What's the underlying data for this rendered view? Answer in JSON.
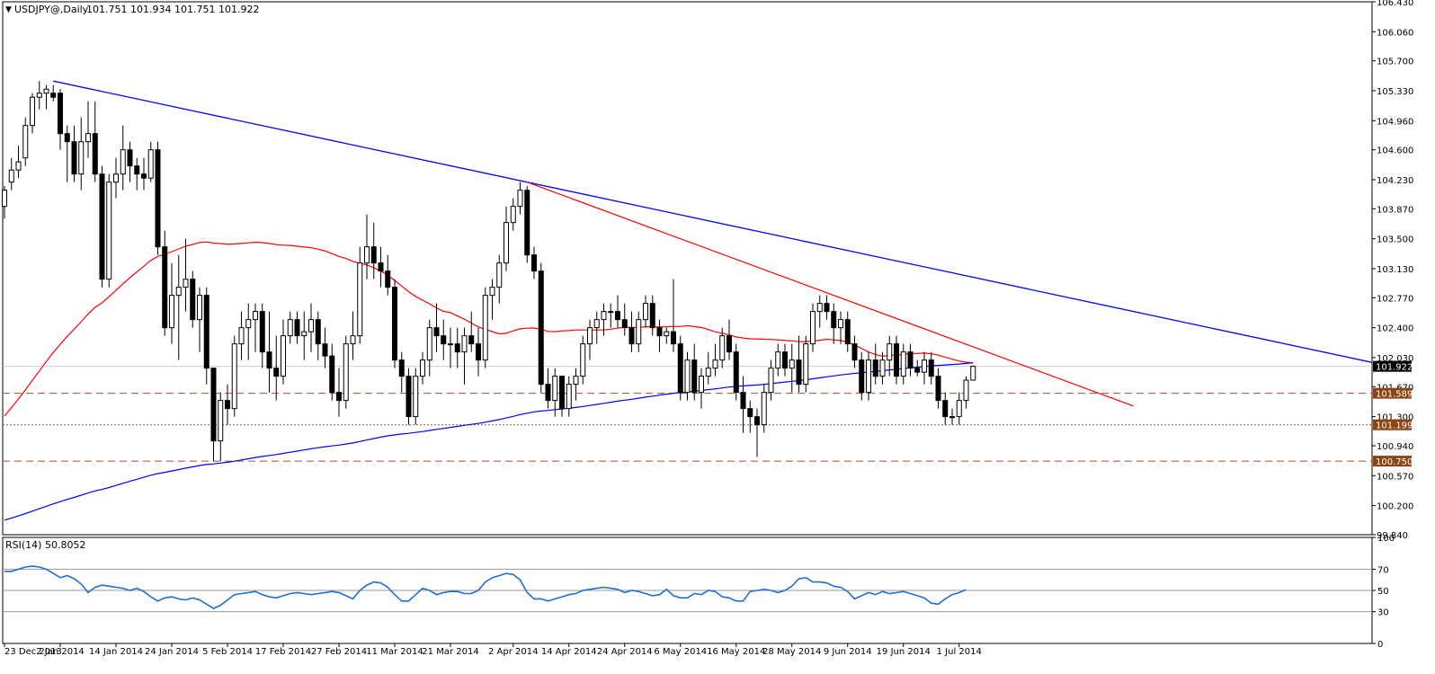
{
  "header": {
    "symbol_label": "USDJPY@,Daily",
    "ohlc_text": "101.751 101.934 101.751 101.922"
  },
  "rsi_header": "RSI(14) 50.8052",
  "colors": {
    "up_body": "#ffffff",
    "down_body": "#000000",
    "candle_outline": "#000000",
    "sma_fast": "#ff0000",
    "sma_slow": "#0000ff",
    "trendline_upper": "#0000ff",
    "trendline_lower": "#ff0000",
    "level_line": "#a0522d",
    "level_tag_bg": "#8b4513",
    "rsi_line": "#1e6fd0"
  },
  "chart_data": [
    {
      "type": "candlestick",
      "title": "USDJPY@,Daily",
      "ylim": [
        99.84,
        106.43
      ],
      "y_ticks": [
        106.43,
        106.06,
        105.7,
        105.33,
        104.96,
        104.6,
        104.23,
        103.87,
        103.5,
        103.13,
        102.77,
        102.4,
        102.03,
        101.67,
        101.3,
        100.94,
        100.57,
        100.2,
        99.84
      ],
      "x_tick_labels": [
        "23 Dec 2013",
        "2 Jan 2014",
        "14 Jan 2014",
        "24 Jan 2014",
        "5 Feb 2014",
        "17 Feb 2014",
        "27 Feb 2014",
        "11 Mar 2014",
        "21 Mar 2014",
        "2 Apr 2014",
        "14 Apr 2014",
        "24 Apr 2014",
        "6 May 2014",
        "16 May 2014",
        "28 May 2014",
        "9 Jun 2014",
        "19 Jun 2014",
        "1 Jul 2014"
      ],
      "last_price": 101.922,
      "levels": [
        {
          "value": 101.589,
          "label": "101.589",
          "style": "dashed"
        },
        {
          "value": 101.199,
          "label": "101.199",
          "style": "dotted"
        },
        {
          "value": 100.75,
          "label": "100.750",
          "style": "dashed"
        }
      ],
      "candles": [
        [
          103.9,
          104.15,
          103.75,
          104.1
        ],
        [
          104.2,
          104.5,
          104.1,
          104.35
        ],
        [
          104.35,
          104.65,
          104.25,
          104.45
        ],
        [
          104.5,
          105.0,
          104.4,
          104.9
        ],
        [
          104.9,
          105.3,
          104.8,
          105.25
        ],
        [
          105.25,
          105.45,
          105.1,
          105.3
        ],
        [
          105.3,
          105.4,
          105.1,
          105.35
        ],
        [
          105.3,
          105.4,
          105.2,
          105.25
        ],
        [
          105.3,
          105.35,
          104.6,
          104.8
        ],
        [
          104.8,
          104.9,
          104.2,
          104.7
        ],
        [
          104.7,
          104.9,
          104.2,
          104.3
        ],
        [
          104.3,
          105.0,
          104.1,
          104.7
        ],
        [
          104.7,
          105.2,
          104.5,
          104.8
        ],
        [
          104.8,
          105.2,
          104.2,
          104.3
        ],
        [
          104.3,
          104.4,
          102.9,
          103.0
        ],
        [
          103.0,
          104.3,
          102.9,
          104.2
        ],
        [
          104.2,
          104.5,
          104.0,
          104.3
        ],
        [
          104.3,
          104.9,
          104.1,
          104.6
        ],
        [
          104.6,
          104.7,
          104.2,
          104.4
        ],
        [
          104.4,
          104.5,
          104.1,
          104.3
        ],
        [
          104.3,
          104.5,
          104.1,
          104.25
        ],
        [
          104.25,
          104.7,
          104.2,
          104.6
        ],
        [
          104.6,
          104.7,
          103.3,
          103.4
        ],
        [
          103.4,
          103.6,
          102.3,
          102.4
        ],
        [
          102.4,
          103.2,
          102.2,
          102.8
        ],
        [
          102.8,
          103.3,
          102.0,
          102.9
        ],
        [
          102.9,
          103.5,
          102.6,
          103.0
        ],
        [
          103.0,
          103.1,
          102.4,
          102.5
        ],
        [
          102.5,
          102.9,
          102.1,
          102.8
        ],
        [
          102.8,
          102.9,
          101.7,
          101.9
        ],
        [
          101.9,
          101.9,
          100.75,
          101.0
        ],
        [
          101.0,
          101.6,
          100.75,
          101.5
        ],
        [
          101.5,
          101.7,
          101.2,
          101.4
        ],
        [
          101.4,
          102.3,
          101.3,
          102.2
        ],
        [
          102.2,
          102.6,
          102.0,
          102.4
        ],
        [
          102.4,
          102.7,
          102.0,
          102.5
        ],
        [
          102.5,
          102.7,
          102.1,
          102.6
        ],
        [
          102.6,
          102.7,
          101.9,
          102.1
        ],
        [
          102.1,
          102.6,
          101.6,
          101.9
        ],
        [
          101.9,
          102.3,
          101.5,
          101.8
        ],
        [
          101.8,
          102.5,
          101.7,
          102.3
        ],
        [
          102.3,
          102.6,
          102.2,
          102.5
        ],
        [
          102.5,
          102.6,
          102.2,
          102.3
        ],
        [
          102.3,
          102.6,
          102.0,
          102.35
        ],
        [
          102.35,
          102.7,
          102.1,
          102.5
        ],
        [
          102.5,
          102.6,
          102.0,
          102.2
        ],
        [
          102.2,
          102.4,
          101.9,
          102.05
        ],
        [
          102.05,
          102.2,
          101.5,
          101.6
        ],
        [
          101.6,
          101.9,
          101.3,
          101.5
        ],
        [
          101.5,
          102.3,
          101.4,
          102.2
        ],
        [
          102.2,
          102.6,
          102.0,
          102.3
        ],
        [
          102.3,
          103.4,
          102.2,
          103.2
        ],
        [
          103.2,
          103.8,
          103.0,
          103.4
        ],
        [
          103.4,
          103.7,
          103.0,
          103.2
        ],
        [
          103.2,
          103.4,
          102.9,
          103.1
        ],
        [
          103.1,
          103.3,
          102.8,
          102.9
        ],
        [
          102.9,
          103.0,
          101.9,
          102.0
        ],
        [
          102.0,
          102.1,
          101.6,
          101.8
        ],
        [
          101.8,
          101.9,
          101.2,
          101.3
        ],
        [
          101.3,
          101.9,
          101.2,
          101.8
        ],
        [
          101.8,
          102.1,
          101.7,
          102.0
        ],
        [
          102.0,
          102.5,
          101.8,
          102.4
        ],
        [
          102.4,
          102.7,
          102.1,
          102.3
        ],
        [
          102.3,
          102.5,
          102.0,
          102.2
        ],
        [
          102.2,
          102.4,
          101.9,
          102.2
        ],
        [
          102.2,
          102.4,
          101.9,
          102.1
        ],
        [
          102.1,
          102.4,
          101.7,
          102.3
        ],
        [
          102.3,
          102.6,
          102.1,
          102.2
        ],
        [
          102.2,
          102.4,
          101.8,
          102.0
        ],
        [
          102.0,
          102.9,
          101.9,
          102.8
        ],
        [
          102.8,
          103.0,
          102.5,
          102.9
        ],
        [
          102.9,
          103.3,
          102.7,
          103.2
        ],
        [
          103.2,
          103.9,
          103.1,
          103.7
        ],
        [
          103.7,
          104.0,
          103.6,
          103.9
        ],
        [
          103.9,
          104.2,
          103.8,
          104.1
        ],
        [
          104.1,
          104.15,
          103.2,
          103.3
        ],
        [
          103.3,
          103.4,
          103.0,
          103.1
        ],
        [
          103.1,
          103.2,
          101.6,
          101.7
        ],
        [
          101.7,
          101.9,
          101.4,
          101.5
        ],
        [
          101.5,
          101.9,
          101.3,
          101.8
        ],
        [
          101.8,
          101.8,
          101.3,
          101.4
        ],
        [
          101.4,
          101.8,
          101.3,
          101.7
        ],
        [
          101.7,
          101.9,
          101.5,
          101.8
        ],
        [
          101.8,
          102.3,
          101.7,
          102.2
        ],
        [
          102.2,
          102.5,
          102.0,
          102.4
        ],
        [
          102.4,
          102.6,
          102.2,
          102.5
        ],
        [
          102.5,
          102.7,
          102.3,
          102.6
        ],
        [
          102.6,
          102.7,
          102.4,
          102.6
        ],
        [
          102.6,
          102.8,
          102.4,
          102.5
        ],
        [
          102.5,
          102.7,
          102.3,
          102.4
        ],
        [
          102.4,
          102.6,
          102.1,
          102.2
        ],
        [
          102.2,
          102.6,
          102.1,
          102.5
        ],
        [
          102.5,
          102.8,
          102.4,
          102.7
        ],
        [
          102.7,
          102.8,
          102.3,
          102.4
        ],
        [
          102.4,
          102.5,
          102.1,
          102.3
        ],
        [
          102.3,
          102.4,
          102.2,
          102.35
        ],
        [
          102.35,
          103.0,
          102.1,
          102.2
        ],
        [
          102.2,
          102.3,
          101.5,
          101.6
        ],
        [
          101.6,
          102.1,
          101.5,
          102.0
        ],
        [
          102.0,
          102.2,
          101.5,
          101.6
        ],
        [
          101.6,
          101.9,
          101.4,
          101.8
        ],
        [
          101.8,
          102.1,
          101.7,
          101.9
        ],
        [
          101.9,
          102.2,
          101.8,
          102.0
        ],
        [
          102.0,
          102.4,
          101.9,
          102.3
        ],
        [
          102.3,
          102.5,
          102.0,
          102.1
        ],
        [
          102.1,
          102.2,
          101.5,
          101.6
        ],
        [
          101.6,
          101.8,
          101.1,
          101.4
        ],
        [
          101.4,
          101.5,
          101.1,
          101.3
        ],
        [
          101.3,
          101.4,
          100.8,
          101.2
        ],
        [
          101.2,
          101.7,
          101.1,
          101.6
        ],
        [
          101.6,
          102.0,
          101.5,
          101.9
        ],
        [
          101.9,
          102.2,
          101.8,
          102.1
        ],
        [
          102.1,
          102.2,
          101.8,
          101.9
        ],
        [
          101.9,
          102.2,
          101.6,
          102.0
        ],
        [
          102.0,
          102.3,
          101.6,
          101.7
        ],
        [
          101.7,
          102.3,
          101.6,
          102.2
        ],
        [
          102.2,
          102.7,
          102.1,
          102.6
        ],
        [
          102.6,
          102.8,
          102.4,
          102.7
        ],
        [
          102.7,
          102.8,
          102.5,
          102.6
        ],
        [
          102.6,
          102.7,
          102.2,
          102.4
        ],
        [
          102.4,
          102.6,
          102.2,
          102.5
        ],
        [
          102.5,
          102.6,
          102.1,
          102.2
        ],
        [
          102.2,
          102.3,
          101.9,
          102.0
        ],
        [
          102.0,
          102.1,
          101.5,
          101.6
        ],
        [
          101.6,
          102.1,
          101.5,
          102.0
        ],
        [
          102.0,
          102.2,
          101.7,
          101.8
        ],
        [
          101.8,
          102.1,
          101.7,
          102.0
        ],
        [
          102.0,
          102.3,
          101.8,
          102.2
        ],
        [
          102.2,
          102.3,
          101.7,
          101.8
        ],
        [
          101.8,
          102.2,
          101.7,
          102.1
        ],
        [
          102.1,
          102.2,
          101.8,
          101.9
        ],
        [
          101.9,
          102.0,
          101.8,
          101.85
        ],
        [
          101.85,
          102.1,
          101.7,
          102.0
        ],
        [
          102.0,
          102.1,
          101.7,
          101.8
        ],
        [
          101.8,
          101.9,
          101.4,
          101.5
        ],
        [
          101.5,
          101.6,
          101.2,
          101.3
        ],
        [
          101.3,
          101.4,
          101.2,
          101.3
        ],
        [
          101.3,
          101.6,
          101.2,
          101.5
        ],
        [
          101.5,
          101.8,
          101.4,
          101.751
        ],
        [
          101.751,
          101.934,
          101.751,
          101.922
        ]
      ],
      "indicators": [
        "SMA 50 (red)",
        "SMA 200 (blue)"
      ]
    },
    {
      "type": "line",
      "title": "RSI(14) 50.8052",
      "ylim": [
        0,
        100
      ],
      "y_ticks": [
        100,
        70,
        50,
        30,
        0
      ],
      "levels": [
        70,
        50,
        30
      ],
      "values": [
        68,
        68,
        70,
        72,
        73,
        72,
        70,
        66,
        62,
        64,
        61,
        56,
        48,
        53,
        55,
        54,
        53,
        52,
        50,
        52,
        49,
        44,
        40,
        43,
        44,
        42,
        41,
        43,
        41,
        37,
        33,
        36,
        41,
        46,
        47,
        48,
        49,
        46,
        44,
        43,
        45,
        47,
        48,
        47,
        46,
        47,
        48,
        49,
        48,
        45,
        42,
        50,
        55,
        58,
        57,
        53,
        46,
        40,
        40,
        46,
        52,
        50,
        46,
        48,
        49,
        49,
        47,
        47,
        50,
        58,
        62,
        64,
        66,
        65,
        60,
        48,
        42,
        42,
        40,
        42,
        44,
        46,
        47,
        50,
        51,
        52,
        53,
        52,
        51,
        48,
        50,
        49,
        47,
        45,
        46,
        51,
        45,
        43,
        43,
        47,
        46,
        50,
        49,
        44,
        43,
        40,
        40,
        49,
        50,
        51,
        50,
        48,
        50,
        54,
        61,
        62,
        58,
        58,
        57,
        54,
        53,
        49,
        42,
        45,
        48,
        46,
        49,
        47,
        48,
        49,
        47,
        45,
        43,
        38,
        37,
        42,
        46,
        48,
        50.8
      ]
    }
  ]
}
